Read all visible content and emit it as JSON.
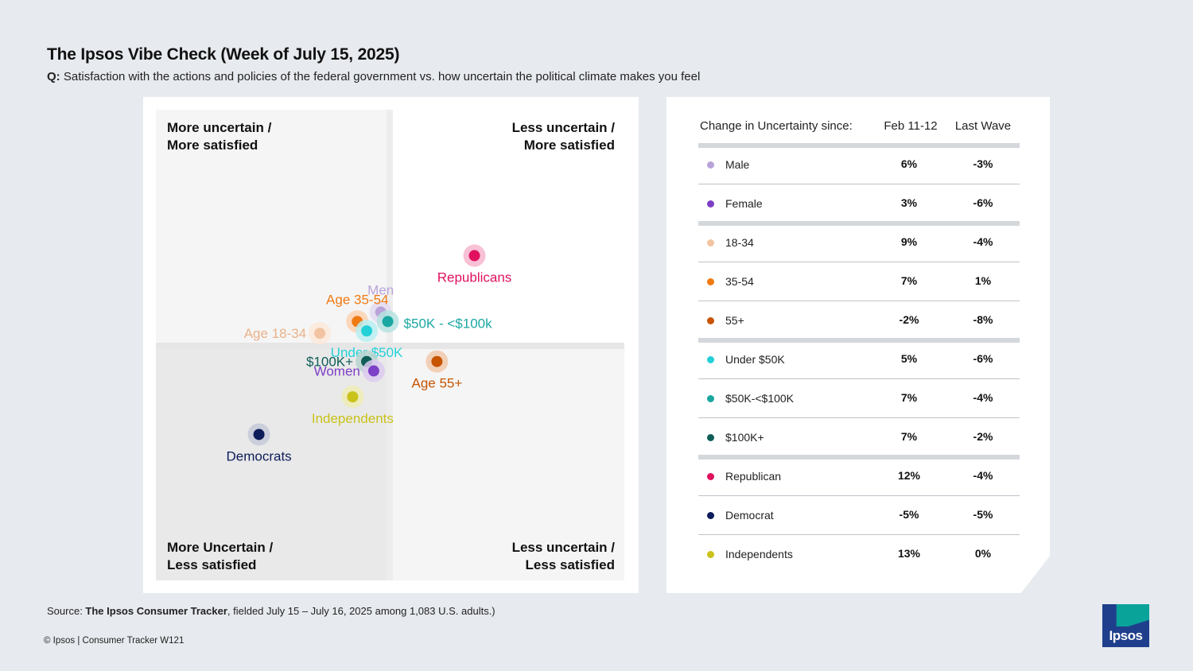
{
  "header": {
    "title": "The Ipsos Vibe Check (Week of July 15, 2025)",
    "question_prefix": "Q:",
    "question": "Satisfaction with the actions and policies of the federal government vs. how uncertain the political climate makes you feel"
  },
  "chart_data": {
    "type": "scatter",
    "quadrants": {
      "top_left": [
        "More uncertain /",
        "More satisfied"
      ],
      "top_right": [
        "Less uncertain /",
        "More satisfied"
      ],
      "bottom_left": [
        "More Uncertain /",
        "Less satisfied"
      ],
      "bottom_right": [
        "Less uncertain /",
        "Less satisfied"
      ]
    },
    "x_axis": "uncertainty (less uncertain to the right)",
    "y_axis": "satisfaction (more satisfied upward)",
    "xlim": [
      0,
      100
    ],
    "ylim": [
      0,
      100
    ],
    "divider": {
      "x": 50,
      "y": 50
    },
    "points": [
      {
        "label": "Republicans",
        "x": 68,
        "y": 69,
        "color": "#e0115f",
        "halo": "#f7b6cf",
        "label_pos": "below"
      },
      {
        "label": "Men",
        "x": 48,
        "y": 57,
        "color": "#b9a3d9",
        "halo": "#e3daf0",
        "label_pos": "above"
      },
      {
        "label": "$50K - <$100k",
        "x": 49.5,
        "y": 55,
        "color": "#1aa7a1",
        "halo": "#b5e3e0",
        "label_pos": "right"
      },
      {
        "label": "Age 35-54",
        "x": 43,
        "y": 55,
        "color": "#f07a12",
        "halo": "#fbd1b0",
        "label_pos": "above"
      },
      {
        "label": "Under $50K",
        "x": 45,
        "y": 53,
        "color": "#23d0d8",
        "halo": "#b8eef1",
        "label_pos": "below"
      },
      {
        "label": "Age 18-34",
        "x": 35,
        "y": 52.5,
        "color": "#f2c4a2",
        "halo": "#fbe7d9",
        "label_pos": "left"
      },
      {
        "label": "$100K+",
        "x": 45,
        "y": 46.5,
        "color": "#0f5e58",
        "halo": "#b7d3d0",
        "label_pos": "left"
      },
      {
        "label": "Age 55+",
        "x": 60,
        "y": 46.5,
        "color": "#c75400",
        "halo": "#f1c9ad",
        "label_pos": "below"
      },
      {
        "label": "Women",
        "x": 46.5,
        "y": 44.5,
        "color": "#7d3fc6",
        "halo": "#dccaf0",
        "label_pos": "left"
      },
      {
        "label": "Independents",
        "x": 42,
        "y": 39,
        "color": "#c9c21a",
        "halo": "#efecb3",
        "label_pos": "below"
      },
      {
        "label": "Democrats",
        "x": 22,
        "y": 31,
        "color": "#0d1c5a",
        "halo": "#c5c9d8",
        "label_pos": "below"
      }
    ]
  },
  "table": {
    "header_label": "Change in Uncertainty since:",
    "col1": "Feb 11-12",
    "col2": "Last Wave",
    "rows": [
      {
        "label": "Male",
        "v1": "6%",
        "v2": "-3%",
        "color": "#b9a3d9"
      },
      {
        "label": "Female",
        "v1": "3%",
        "v2": "-6%",
        "color": "#7d3fc6"
      },
      {
        "label": "18-34",
        "v1": "9%",
        "v2": "-4%",
        "color": "#f2c4a2"
      },
      {
        "label": "35-54",
        "v1": "7%",
        "v2": "1%",
        "color": "#f07a12"
      },
      {
        "label": "55+",
        "v1": "-2%",
        "v2": "-8%",
        "color": "#c75400"
      },
      {
        "label": "Under $50K",
        "v1": "5%",
        "v2": "-6%",
        "color": "#23d0d8"
      },
      {
        "label": "$50K-<$100K",
        "v1": "7%",
        "v2": "-4%",
        "color": "#1aa7a1"
      },
      {
        "label": "$100K+",
        "v1": "7%",
        "v2": "-2%",
        "color": "#0f5e58"
      },
      {
        "label": "Republican",
        "v1": "12%",
        "v2": "-4%",
        "color": "#e0115f"
      },
      {
        "label": "Democrat",
        "v1": "-5%",
        "v2": "-5%",
        "color": "#0d1c5a"
      },
      {
        "label": "Independents",
        "v1": "13%",
        "v2": "0%",
        "color": "#c9c21a"
      }
    ]
  },
  "footer": {
    "source_prefix": "Source: ",
    "source_bold": "The Ipsos Consumer Tracker",
    "source_rest": ", fielded July 15 – July 16, 2025 among 1,083 U.S. adults.)",
    "copyright": "© Ipsos | Consumer Tracker W121",
    "logo_text": "Ipsos"
  }
}
